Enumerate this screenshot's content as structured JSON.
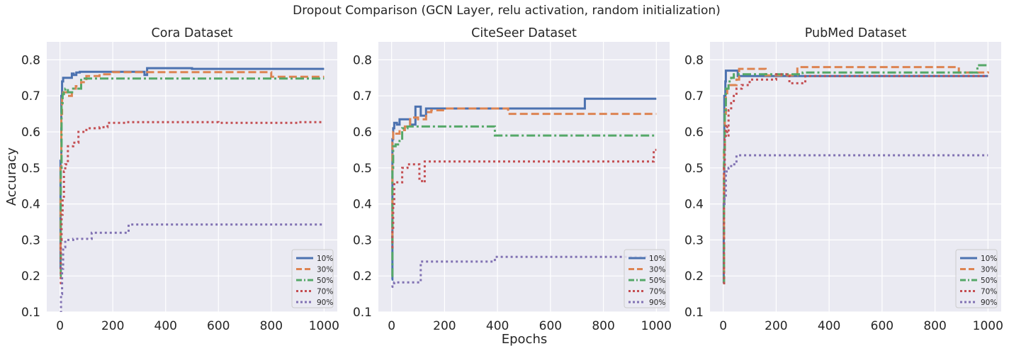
{
  "suptitle": "Dropout Comparison  (GCN Layer, relu activation, random initialization)",
  "xlabel": "Epochs",
  "ylabel": "Accuracy",
  "colors": {
    "10%": "#4c72b0",
    "30%": "#dd8452",
    "50%": "#55a868",
    "70%": "#c44e52",
    "90%": "#8172b3",
    "axes_bg": "#eaeaf2",
    "grid": "#ffffff"
  },
  "chart_data": [
    {
      "type": "line",
      "title": "Cora Dataset",
      "xlim": [
        -50,
        1050
      ],
      "ylim": [
        0.1,
        0.85
      ],
      "xticks": [
        0,
        200,
        400,
        600,
        800,
        1000
      ],
      "yticks": [
        0.1,
        0.2,
        0.3,
        0.4,
        0.5,
        0.6,
        0.7,
        0.8
      ],
      "grid": true,
      "legend": "lower-right",
      "series": [
        {
          "name": "10%",
          "style": "solid",
          "x": [
            0,
            2,
            5,
            8,
            12,
            30,
            45,
            52,
            62,
            75,
            300,
            320,
            330,
            500,
            1000
          ],
          "y": [
            0.22,
            0.52,
            0.7,
            0.74,
            0.75,
            0.75,
            0.762,
            0.758,
            0.765,
            0.767,
            0.767,
            0.758,
            0.777,
            0.775,
            0.775
          ]
        },
        {
          "name": "30%",
          "style": "dashed",
          "x": [
            0,
            2,
            5,
            8,
            12,
            20,
            30,
            45,
            60,
            80,
            100,
            150,
            200,
            400,
            600,
            800,
            1000
          ],
          "y": [
            0.27,
            0.5,
            0.65,
            0.7,
            0.71,
            0.71,
            0.7,
            0.72,
            0.727,
            0.738,
            0.755,
            0.76,
            0.766,
            0.766,
            0.766,
            0.753,
            0.753
          ]
        },
        {
          "name": "50%",
          "style": "dashdot",
          "x": [
            0,
            3,
            6,
            10,
            15,
            20,
            30,
            50,
            70,
            80,
            150,
            400,
            700,
            1000
          ],
          "y": [
            0.2,
            0.5,
            0.68,
            0.705,
            0.71,
            0.72,
            0.71,
            0.72,
            0.72,
            0.748,
            0.748,
            0.748,
            0.748,
            0.748
          ]
        },
        {
          "name": "70%",
          "style": "dotted",
          "x": [
            0,
            3,
            6,
            10,
            15,
            20,
            30,
            50,
            70,
            100,
            150,
            180,
            250,
            400,
            600,
            900,
            1000
          ],
          "y": [
            0.18,
            0.3,
            0.37,
            0.42,
            0.49,
            0.51,
            0.56,
            0.57,
            0.6,
            0.61,
            0.613,
            0.625,
            0.627,
            0.627,
            0.625,
            0.627,
            0.627
          ]
        },
        {
          "name": "90%",
          "style": "dotted",
          "x": [
            0,
            4,
            8,
            12,
            20,
            50,
            100,
            120,
            250,
            260,
            400,
            700,
            1000
          ],
          "y": [
            0.1,
            0.15,
            0.22,
            0.28,
            0.3,
            0.303,
            0.303,
            0.32,
            0.32,
            0.343,
            0.343,
            0.343,
            0.343
          ]
        }
      ]
    },
    {
      "type": "line",
      "title": "CiteSeer Dataset",
      "xlim": [
        -50,
        1050
      ],
      "ylim": [
        0.1,
        0.85
      ],
      "xticks": [
        0,
        200,
        400,
        600,
        800,
        1000
      ],
      "yticks": [
        0.1,
        0.2,
        0.3,
        0.4,
        0.5,
        0.6,
        0.7,
        0.8
      ],
      "grid": true,
      "legend": "lower-right",
      "series": [
        {
          "name": "10%",
          "style": "solid",
          "x": [
            0,
            3,
            6,
            10,
            20,
            30,
            50,
            70,
            90,
            110,
            130,
            150,
            200,
            400,
            600,
            730,
            1000
          ],
          "y": [
            0.19,
            0.58,
            0.61,
            0.625,
            0.62,
            0.635,
            0.635,
            0.62,
            0.67,
            0.645,
            0.665,
            0.665,
            0.665,
            0.665,
            0.665,
            0.692,
            0.692
          ]
        },
        {
          "name": "30%",
          "style": "dashed",
          "x": [
            0,
            3,
            6,
            10,
            30,
            50,
            70,
            100,
            130,
            150,
            200,
            300,
            420,
            440,
            600,
            1000
          ],
          "y": [
            0.3,
            0.57,
            0.6,
            0.595,
            0.605,
            0.615,
            0.64,
            0.635,
            0.655,
            0.66,
            0.665,
            0.665,
            0.665,
            0.65,
            0.65,
            0.65
          ]
        },
        {
          "name": "50%",
          "style": "dashdot",
          "x": [
            0,
            3,
            6,
            15,
            30,
            40,
            60,
            100,
            200,
            380,
            390,
            600,
            1000
          ],
          "y": [
            0.2,
            0.5,
            0.56,
            0.565,
            0.575,
            0.61,
            0.615,
            0.615,
            0.615,
            0.615,
            0.59,
            0.59,
            0.59
          ]
        },
        {
          "name": "70%",
          "style": "dotted",
          "x": [
            0,
            3,
            6,
            10,
            20,
            40,
            60,
            100,
            105,
            115,
            125,
            200,
            400,
            600,
            800,
            980,
            990,
            1000
          ],
          "y": [
            0.28,
            0.33,
            0.4,
            0.46,
            0.46,
            0.5,
            0.51,
            0.51,
            0.47,
            0.46,
            0.518,
            0.518,
            0.518,
            0.518,
            0.518,
            0.518,
            0.55,
            0.55
          ]
        },
        {
          "name": "90%",
          "style": "dotted",
          "x": [
            0,
            3,
            10,
            100,
            110,
            200,
            380,
            390,
            600,
            1000
          ],
          "y": [
            0.17,
            0.18,
            0.182,
            0.182,
            0.24,
            0.24,
            0.24,
            0.253,
            0.253,
            0.253
          ]
        }
      ]
    },
    {
      "type": "line",
      "title": "PubMed Dataset",
      "xlim": [
        -50,
        1050
      ],
      "ylim": [
        0.1,
        0.85
      ],
      "xticks": [
        0,
        200,
        400,
        600,
        800,
        1000
      ],
      "yticks": [
        0.1,
        0.2,
        0.3,
        0.4,
        0.5,
        0.6,
        0.7,
        0.8
      ],
      "grid": true,
      "legend": "lower-right",
      "series": [
        {
          "name": "10%",
          "style": "solid",
          "x": [
            0,
            2,
            4,
            8,
            10,
            50,
            55,
            200,
            600,
            1000
          ],
          "y": [
            0.18,
            0.4,
            0.7,
            0.74,
            0.77,
            0.77,
            0.755,
            0.755,
            0.755,
            0.755
          ]
        },
        {
          "name": "30%",
          "style": "dashed",
          "x": [
            0,
            3,
            6,
            10,
            15,
            25,
            40,
            50,
            60,
            150,
            160,
            270,
            280,
            600,
            880,
            890,
            1000
          ],
          "y": [
            0.18,
            0.55,
            0.65,
            0.7,
            0.72,
            0.73,
            0.73,
            0.745,
            0.775,
            0.775,
            0.757,
            0.757,
            0.78,
            0.78,
            0.78,
            0.765,
            0.768
          ]
        },
        {
          "name": "50%",
          "style": "dashdot",
          "x": [
            0,
            3,
            6,
            10,
            20,
            30,
            40,
            50,
            100,
            300,
            600,
            950,
            960,
            1000
          ],
          "y": [
            0.18,
            0.55,
            0.66,
            0.72,
            0.74,
            0.75,
            0.76,
            0.76,
            0.76,
            0.765,
            0.765,
            0.765,
            0.785,
            0.785
          ]
        },
        {
          "name": "70%",
          "style": "dotted",
          "x": [
            0,
            3,
            6,
            10,
            15,
            20,
            30,
            40,
            50,
            70,
            100,
            150,
            200,
            250,
            300,
            310,
            600,
            1000
          ],
          "y": [
            0.18,
            0.5,
            0.58,
            0.62,
            0.59,
            0.66,
            0.68,
            0.7,
            0.72,
            0.73,
            0.745,
            0.745,
            0.76,
            0.735,
            0.735,
            0.755,
            0.755,
            0.755
          ]
        },
        {
          "name": "90%",
          "style": "dotted",
          "x": [
            0,
            5,
            10,
            20,
            30,
            40,
            50,
            100,
            600,
            1000
          ],
          "y": [
            0.4,
            0.42,
            0.49,
            0.5,
            0.51,
            0.51,
            0.535,
            0.535,
            0.535,
            0.535
          ]
        }
      ]
    }
  ]
}
